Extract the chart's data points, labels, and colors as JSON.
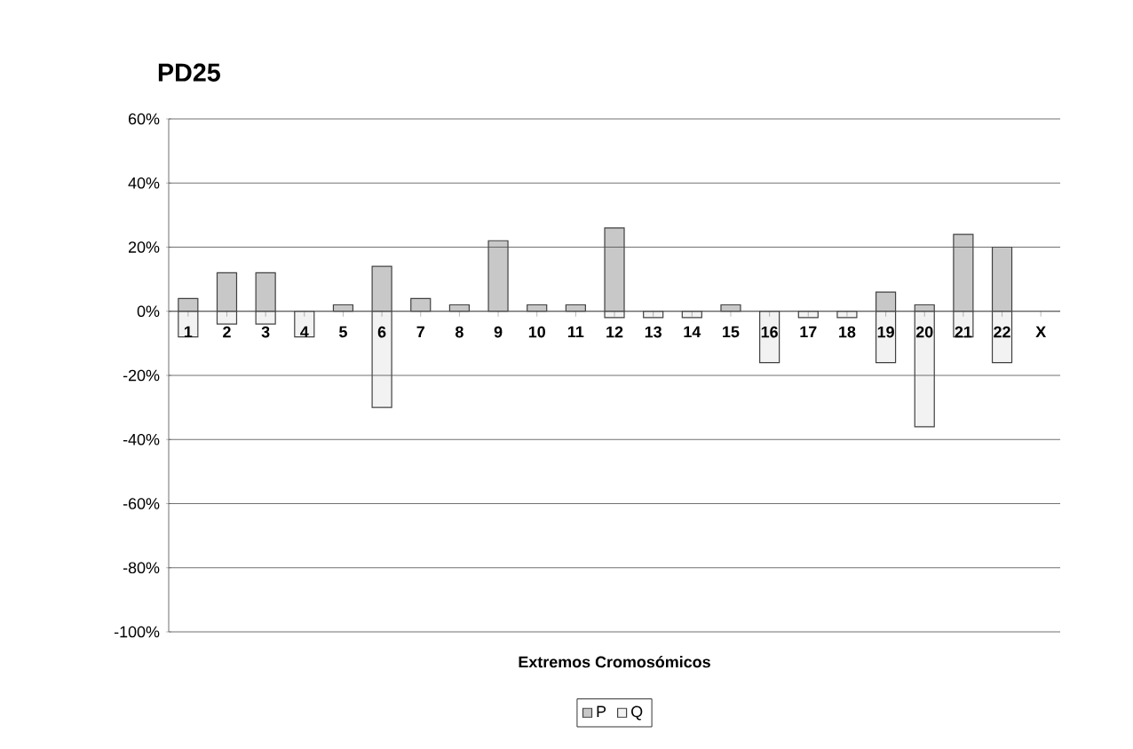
{
  "chart_data": {
    "type": "bar",
    "title": "PD25",
    "xlabel": "Extremos Cromosómicos",
    "categories": [
      "1",
      "2",
      "3",
      "4",
      "5",
      "6",
      "7",
      "8",
      "9",
      "10",
      "11",
      "12",
      "13",
      "14",
      "15",
      "16",
      "17",
      "18",
      "19",
      "20",
      "21",
      "22",
      "X"
    ],
    "series": [
      {
        "name": "P",
        "color": "#c8c8c8",
        "values": [
          4,
          12,
          12,
          null,
          2,
          14,
          4,
          2,
          22,
          2,
          2,
          26,
          null,
          null,
          2,
          null,
          null,
          null,
          6,
          2,
          24,
          20,
          null
        ]
      },
      {
        "name": "Q",
        "color": "#f2f2f2",
        "values": [
          -8,
          -4,
          -4,
          -8,
          null,
          -30,
          null,
          null,
          null,
          null,
          null,
          -2,
          -2,
          -2,
          null,
          -16,
          -2,
          -2,
          -16,
          -36,
          -8,
          -16,
          null
        ]
      }
    ],
    "ylim": [
      -100,
      60
    ],
    "yticks": [
      {
        "value": -100,
        "label": "-100%"
      },
      {
        "value": -80,
        "label": "-80%"
      },
      {
        "value": -60,
        "label": "-60%"
      },
      {
        "value": -40,
        "label": "-40%"
      },
      {
        "value": -20,
        "label": "-20%"
      },
      {
        "value": 0,
        "label": "0%"
      },
      {
        "value": 20,
        "label": "20%"
      },
      {
        "value": 40,
        "label": "40%"
      },
      {
        "value": 60,
        "label": "60%"
      }
    ],
    "grid": "y",
    "legend": "bottom"
  }
}
